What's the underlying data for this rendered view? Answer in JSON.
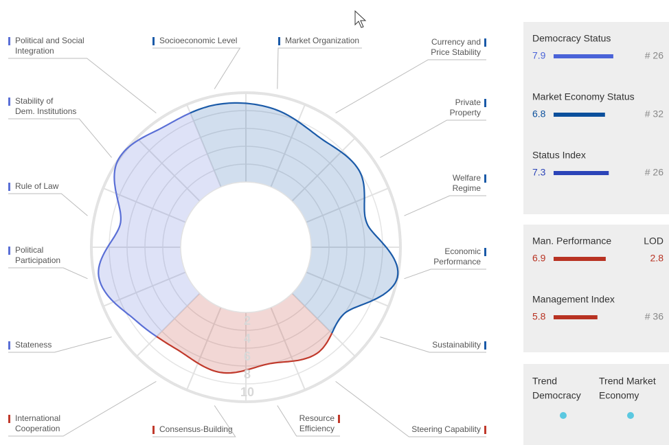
{
  "chart_data": {
    "type": "radial",
    "categories": [
      [
        "Socioeconomic Level"
      ],
      [
        "Market Organization"
      ],
      [
        "Currency and",
        "Price Stability"
      ],
      [
        "Private",
        "Property"
      ],
      [
        "Welfare",
        "Regime"
      ],
      [
        "Economic",
        "Performance"
      ],
      [
        "Sustainability"
      ],
      [
        "Steering Capability"
      ],
      [
        "Resource",
        "Efficiency"
      ],
      [
        "Consensus-Building"
      ],
      [
        "International",
        "Cooperation"
      ],
      [
        "Stateness"
      ],
      [
        "Political",
        "Participation"
      ],
      [
        "Rule of Law"
      ],
      [
        "Stability of",
        "Dem. Institutions"
      ],
      [
        "Political and Social",
        "Integration"
      ]
    ],
    "values": [
      9,
      8.5,
      7.5,
      8,
      6.5,
      10,
      6,
      7,
      6,
      7,
      6.5,
      7.5,
      9.5,
      7,
      10,
      9
    ],
    "colors": [
      "#1a5aa8",
      "#1a5aa8",
      "#1a5aa8",
      "#1a5aa8",
      "#1a5aa8",
      "#1a5aa8",
      "#1a5aa8",
      "#c0392b",
      "#c0392b",
      "#c0392b",
      "#c0392b",
      "#5a6fd6",
      "#5a6fd6",
      "#5a6fd6",
      "#5a6fd6",
      "#5a6fd6"
    ],
    "ylim": [
      0,
      10
    ],
    "scale_ticks": [
      2,
      4,
      6,
      8,
      10
    ]
  },
  "panels": [
    {
      "items": [
        {
          "label": "Democracy Status",
          "value": 7.9,
          "rank": "# 26",
          "color": "#4a63d8"
        },
        {
          "label": "Market Economy Status",
          "value": 6.8,
          "rank": "# 32",
          "color": "#0b4f9c"
        },
        {
          "label": "Status Index",
          "value": 7.3,
          "rank": "# 26",
          "color": "#2b44b8"
        }
      ]
    },
    {
      "items": [
        {
          "label": "Man. Performance",
          "value": 6.9,
          "side_label": "LOD",
          "side_value": 2.8,
          "color": "#b83222"
        },
        {
          "label": "Management Index",
          "value": 5.8,
          "rank": "# 36",
          "color": "#b83222"
        }
      ]
    },
    {
      "trends": [
        {
          "lines": [
            "Trend",
            "Democracy"
          ],
          "color": "#5bc8e0"
        },
        {
          "lines": [
            "Trend Market",
            "Economy"
          ],
          "color": "#5bc8e0"
        }
      ]
    }
  ]
}
